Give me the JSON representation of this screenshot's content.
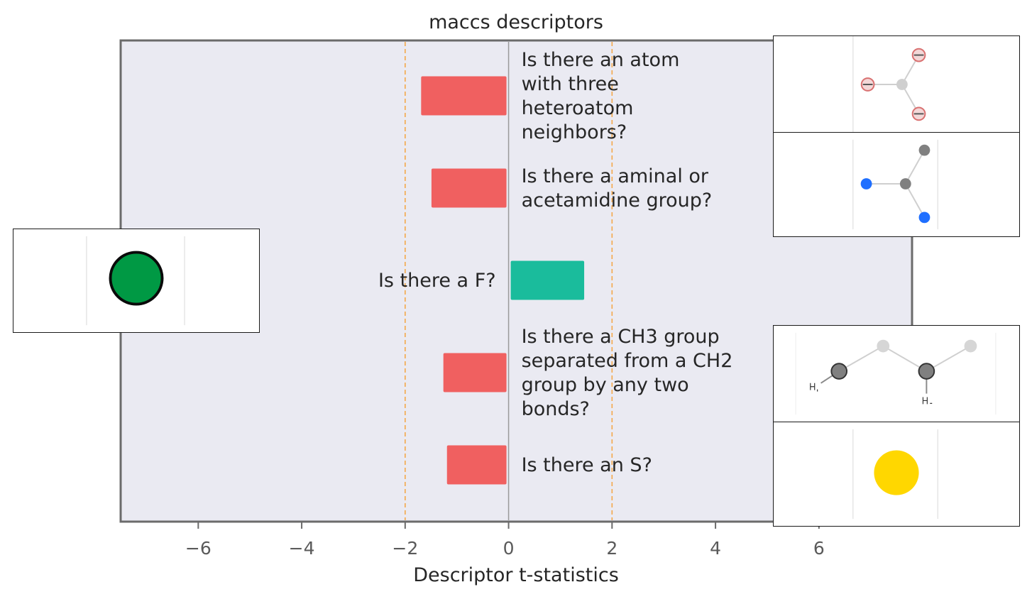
{
  "chart_data": {
    "type": "bar",
    "orientation": "horizontal",
    "title": "maccs descriptors",
    "xlabel": "Descriptor t-statistics",
    "xlim": [
      -7.5,
      7.8
    ],
    "xticks": [
      -6,
      -4,
      -2,
      0,
      2,
      4,
      6
    ],
    "threshold_lines": [
      -2,
      2
    ],
    "threshold_color": "#f4a84a",
    "grid": false,
    "background": "#eaeaf2",
    "colors": {
      "negative": "#f06060",
      "positive": "#1abc9c"
    },
    "bars": [
      {
        "label": "Is there an atom\nwith three\nheteroatom\nneighbors?",
        "value": -1.65,
        "molecule_icon": "three-heteroatom-neighbors-molecule-icon"
      },
      {
        "label": "Is there a aminal or\nacetamidine group?",
        "value": -1.45,
        "molecule_icon": "aminal-acetamidine-molecule-icon"
      },
      {
        "label": "Is there a F?",
        "value": 1.42,
        "molecule_icon": "fluorine-atom-icon"
      },
      {
        "label": "Is there a CH3 group\nseparated from a CH2\ngroup by any two\nbonds?",
        "value": -1.22,
        "molecule_icon": "ch3-ch2-molecule-icon"
      },
      {
        "label": "Is there an S?",
        "value": -1.15,
        "molecule_icon": "sulfur-atom-icon"
      }
    ]
  }
}
